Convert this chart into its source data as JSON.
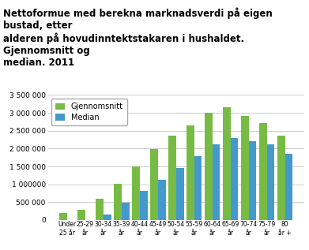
{
  "title": "Nettoformue med berekna marknadsverdi på eigen bustad, etter\nalderen på hovudinntektstakaren i hushaldet. Gjennomsnitt og\nmedian. 2011",
  "categories": [
    "Under\n25 år",
    "25-29\når",
    "30-34\når",
    "35-39\når",
    "40-44\når",
    "45-49\når",
    "50-54\når",
    "55-59\når",
    "60-64\når",
    "65-69\når",
    "70-74\når",
    "75-79\når",
    "80\når +"
  ],
  "gjennomsnitt": [
    200000,
    290000,
    600000,
    1020000,
    1510000,
    1980000,
    2370000,
    2650000,
    3000000,
    3160000,
    2920000,
    2710000,
    2360000
  ],
  "median": [
    10000,
    10000,
    150000,
    490000,
    820000,
    1130000,
    1460000,
    1790000,
    2130000,
    2290000,
    2200000,
    2120000,
    1860000
  ],
  "gjennomsnitt_color": "#77bb44",
  "median_color": "#4499cc",
  "ylim": [
    0,
    3500000
  ],
  "yticks": [
    0,
    500000,
    1000000,
    1500000,
    2000000,
    2500000,
    3000000,
    3500000
  ],
  "ytick_labels": [
    "0",
    "500 000",
    "1 000000",
    "1 500 000",
    "2 000 000",
    "2 500 000",
    "3 000 000",
    "3 500 000"
  ],
  "background_color": "#ffffff",
  "grid_color": "#cccccc",
  "title_fontsize": 8.5,
  "legend_labels": [
    "Gjennomsnitt",
    "Median"
  ]
}
